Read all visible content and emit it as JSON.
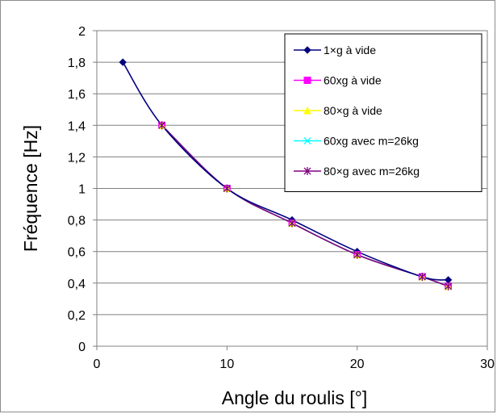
{
  "chart_data": {
    "type": "line",
    "xlabel": "Angle du roulis [°]",
    "ylabel": "Fréquence [Hz]",
    "xlim": [
      0,
      30
    ],
    "ylim": [
      0,
      2
    ],
    "x_ticks": [
      "0",
      "10",
      "20",
      "30"
    ],
    "y_ticks": [
      "0",
      "0,2",
      "0,4",
      "0,6",
      "0,8",
      "1",
      "1,2",
      "1,4",
      "1,6",
      "1,8",
      "2"
    ],
    "grid": "horizontal",
    "legend_position": "top-right",
    "series": [
      {
        "name": "1×g  à vide",
        "color": "#000080",
        "marker": "diamond",
        "x": [
          2,
          5,
          10,
          15,
          20,
          25,
          27
        ],
        "y": [
          1.8,
          1.4,
          1.0,
          0.8,
          0.6,
          0.44,
          0.42
        ]
      },
      {
        "name": "60xg à vide",
        "color": "#ff00ff",
        "marker": "square",
        "x": [
          5,
          10,
          15,
          20,
          25,
          27
        ],
        "y": [
          1.4,
          1.0,
          0.78,
          0.58,
          0.44,
          0.38
        ]
      },
      {
        "name": "80×g à vide",
        "color": "#ffff00",
        "marker": "triangle",
        "x": [
          5,
          10,
          15,
          20,
          25,
          27
        ],
        "y": [
          1.4,
          1.0,
          0.78,
          0.58,
          0.44,
          0.38
        ]
      },
      {
        "name": "60xg avec m=26kg",
        "color": "#00ffff",
        "marker": "x",
        "x": [
          5,
          10,
          15,
          20,
          25,
          27
        ],
        "y": [
          1.4,
          1.0,
          0.78,
          0.58,
          0.44,
          0.38
        ]
      },
      {
        "name": "80×g avec m=26kg",
        "color": "#800080",
        "marker": "star",
        "x": [
          5,
          10,
          15,
          20,
          25,
          27
        ],
        "y": [
          1.4,
          1.0,
          0.78,
          0.58,
          0.44,
          0.38
        ]
      }
    ]
  }
}
